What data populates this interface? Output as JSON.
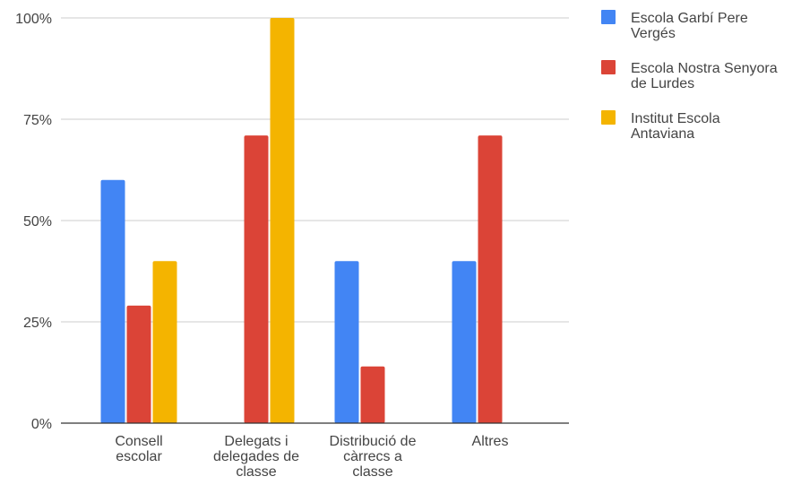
{
  "chart_data": {
    "type": "bar",
    "title": "",
    "xlabel": "",
    "ylabel": "",
    "ylim": [
      0,
      100
    ],
    "y_ticks": [
      0,
      25,
      50,
      75,
      100
    ],
    "y_tick_labels": [
      "0%",
      "25%",
      "50%",
      "75%",
      "100%"
    ],
    "grid": true,
    "legend_position": "right",
    "categories": [
      "Consell escolar",
      "Delegats i delegades de classe",
      "Distribució de càrrecs a classe",
      "Altres"
    ],
    "category_label_lines": [
      [
        "Consell",
        "escolar"
      ],
      [
        "Delegats i",
        "delegades de",
        "classe"
      ],
      [
        "Distribució de",
        "càrrecs a",
        "classe"
      ],
      [
        "Altres"
      ]
    ],
    "series": [
      {
        "name": "Escola Garbí Pere Vergés",
        "legend_lines": [
          "Escola Garbí Pere",
          "Vergés"
        ],
        "color": "#4285f4",
        "values": [
          60,
          0,
          40,
          40
        ]
      },
      {
        "name": "Escola Nostra Senyora de Lurdes",
        "legend_lines": [
          "Escola Nostra Senyora",
          "de Lurdes"
        ],
        "color": "#db4437",
        "values": [
          29,
          71,
          14,
          71
        ]
      },
      {
        "name": "Institut Escola Antaviana",
        "legend_lines": [
          "Institut Escola",
          "Antaviana"
        ],
        "color": "#f4b400",
        "values": [
          40,
          100,
          0,
          0
        ]
      }
    ]
  }
}
